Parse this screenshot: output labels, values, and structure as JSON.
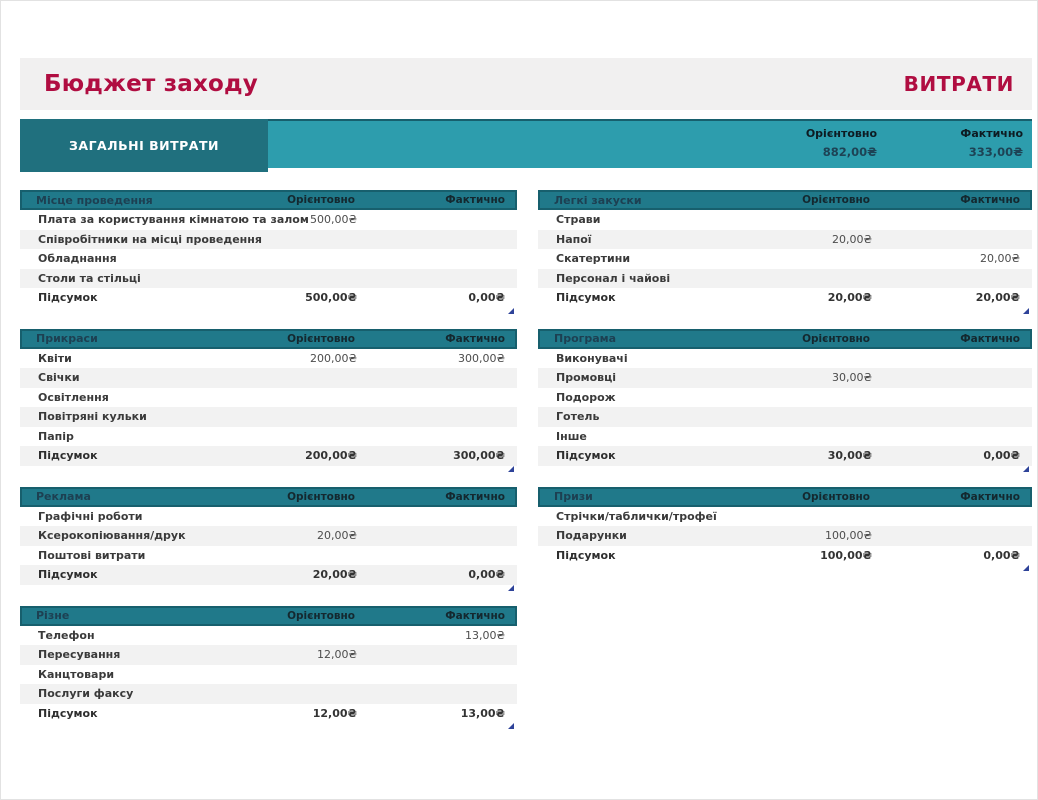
{
  "page": {
    "title": "Бюджет заходу",
    "sheet_label": "ВИТРАТИ"
  },
  "summary": {
    "label": "ЗАГАЛЬНІ ВИТРАТИ",
    "estimated_label": "Орієнтовно",
    "actual_label": "Фактично",
    "estimated_value": "882,00₴",
    "actual_value": "333,00₴"
  },
  "columns": {
    "estimated": "Орієнтовно",
    "actual": "Фактично"
  },
  "colors": {
    "accent": "#b00d41",
    "teal_light": "#2d9dad",
    "teal_dark": "#20707e",
    "teal_mid": "#20798a",
    "teal_edge": "#175f6d",
    "header_name": "#1d4052",
    "header_col": "#14282f",
    "summary_label": "#0d1b22",
    "summary_value": "#1d4355",
    "flag": "#2e4399",
    "stripe": "#f2f2f2",
    "band_bg": "#f1f0f0"
  },
  "tables": [
    {
      "column": "left",
      "name": "Місце проведення",
      "rows": [
        {
          "label": "Плата за користування кімнатою та залом",
          "estimated": "500,00₴",
          "actual": ""
        },
        {
          "label": "Співробітники на місці проведення",
          "estimated": "",
          "actual": ""
        },
        {
          "label": "Обладнання",
          "estimated": "",
          "actual": ""
        },
        {
          "label": "Столи та стільці",
          "estimated": "",
          "actual": ""
        }
      ],
      "total": {
        "label": "Підсумок",
        "estimated": "500,00₴",
        "actual": "0,00₴"
      }
    },
    {
      "column": "left",
      "name": "Прикраси",
      "rows": [
        {
          "label": "Квіти",
          "estimated": "200,00₴",
          "actual": "300,00₴"
        },
        {
          "label": "Свічки",
          "estimated": "",
          "actual": ""
        },
        {
          "label": "Освітлення",
          "estimated": "",
          "actual": ""
        },
        {
          "label": "Повітряні кульки",
          "estimated": "",
          "actual": ""
        },
        {
          "label": "Папір",
          "estimated": "",
          "actual": ""
        }
      ],
      "total": {
        "label": "Підсумок",
        "estimated": "200,00₴",
        "actual": "300,00₴"
      }
    },
    {
      "column": "left",
      "name": "Реклама",
      "rows": [
        {
          "label": "Графічні роботи",
          "estimated": "",
          "actual": ""
        },
        {
          "label": "Ксерокопіювання/друк",
          "estimated": "20,00₴",
          "actual": ""
        },
        {
          "label": "Поштові витрати",
          "estimated": "",
          "actual": ""
        }
      ],
      "total": {
        "label": "Підсумок",
        "estimated": "20,00₴",
        "actual": "0,00₴"
      }
    },
    {
      "column": "left",
      "name": "Різне",
      "rows": [
        {
          "label": "Телефон",
          "estimated": "",
          "actual": "13,00₴"
        },
        {
          "label": "Пересування",
          "estimated": "12,00₴",
          "actual": ""
        },
        {
          "label": "Канцтовари",
          "estimated": "",
          "actual": ""
        },
        {
          "label": "Послуги факсу",
          "estimated": "",
          "actual": ""
        }
      ],
      "total": {
        "label": "Підсумок",
        "estimated": "12,00₴",
        "actual": "13,00₴"
      }
    },
    {
      "column": "right",
      "name": "Легкі закуски",
      "rows": [
        {
          "label": "Страви",
          "estimated": "",
          "actual": ""
        },
        {
          "label": "Напої",
          "estimated": "20,00₴",
          "actual": ""
        },
        {
          "label": "Скатертини",
          "estimated": "",
          "actual": "20,00₴"
        },
        {
          "label": "Персонал і чайові",
          "estimated": "",
          "actual": ""
        }
      ],
      "total": {
        "label": "Підсумок",
        "estimated": "20,00₴",
        "actual": "20,00₴"
      }
    },
    {
      "column": "right",
      "name": "Програма",
      "rows": [
        {
          "label": "Виконувачі",
          "estimated": "",
          "actual": ""
        },
        {
          "label": "Промовці",
          "estimated": "30,00₴",
          "actual": ""
        },
        {
          "label": "Подорож",
          "estimated": "",
          "actual": ""
        },
        {
          "label": "Готель",
          "estimated": "",
          "actual": ""
        },
        {
          "label": "Інше",
          "estimated": "",
          "actual": ""
        }
      ],
      "total": {
        "label": "Підсумок",
        "estimated": "30,00₴",
        "actual": "0,00₴"
      }
    },
    {
      "column": "right",
      "name": "Призи",
      "rows": [
        {
          "label": "Стрічки/таблички/трофеї",
          "estimated": "",
          "actual": ""
        },
        {
          "label": "Подарунки",
          "estimated": "100,00₴",
          "actual": ""
        }
      ],
      "total": {
        "label": "Підсумок",
        "estimated": "100,00₴",
        "actual": "0,00₴"
      }
    }
  ]
}
